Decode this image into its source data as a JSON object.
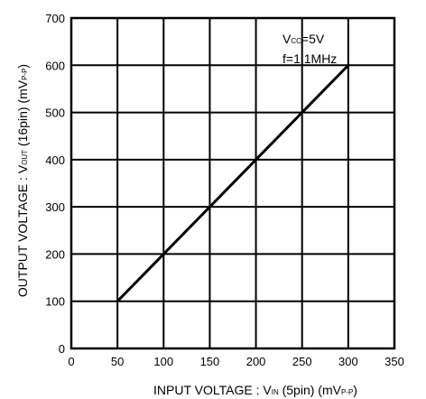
{
  "chart_data": {
    "type": "line",
    "title": "",
    "x": [
      50,
      100,
      150,
      200,
      250,
      300
    ],
    "series": [
      {
        "values": [
          100,
          200,
          300,
          400,
          500,
          600
        ]
      }
    ],
    "xlim": [
      0,
      350
    ],
    "ylim": [
      0,
      700
    ],
    "x_ticks": [
      0,
      50,
      100,
      150,
      200,
      250,
      300,
      350
    ],
    "y_ticks": [
      0,
      100,
      200,
      300,
      400,
      500,
      600,
      700
    ],
    "xlabel": {
      "main": "INPUT  VOLTAGE : V",
      "sub": "IN",
      "rest": "  (5pin) (mV",
      "unit_sub": "P-P",
      "close": ")"
    },
    "ylabel": {
      "main": "OUTPUT  VOLTAGE : V",
      "sub": "OUT",
      "rest": "  (16pin) (mV",
      "unit_sub": "P-P",
      "close": ")"
    },
    "annotations": [
      {
        "main": "V",
        "sub": "CC",
        "rest": "=5V"
      },
      {
        "main": "f=1.1MHz"
      }
    ],
    "grid": true,
    "colors": {
      "line": "#000000",
      "grid": "#000000"
    }
  }
}
